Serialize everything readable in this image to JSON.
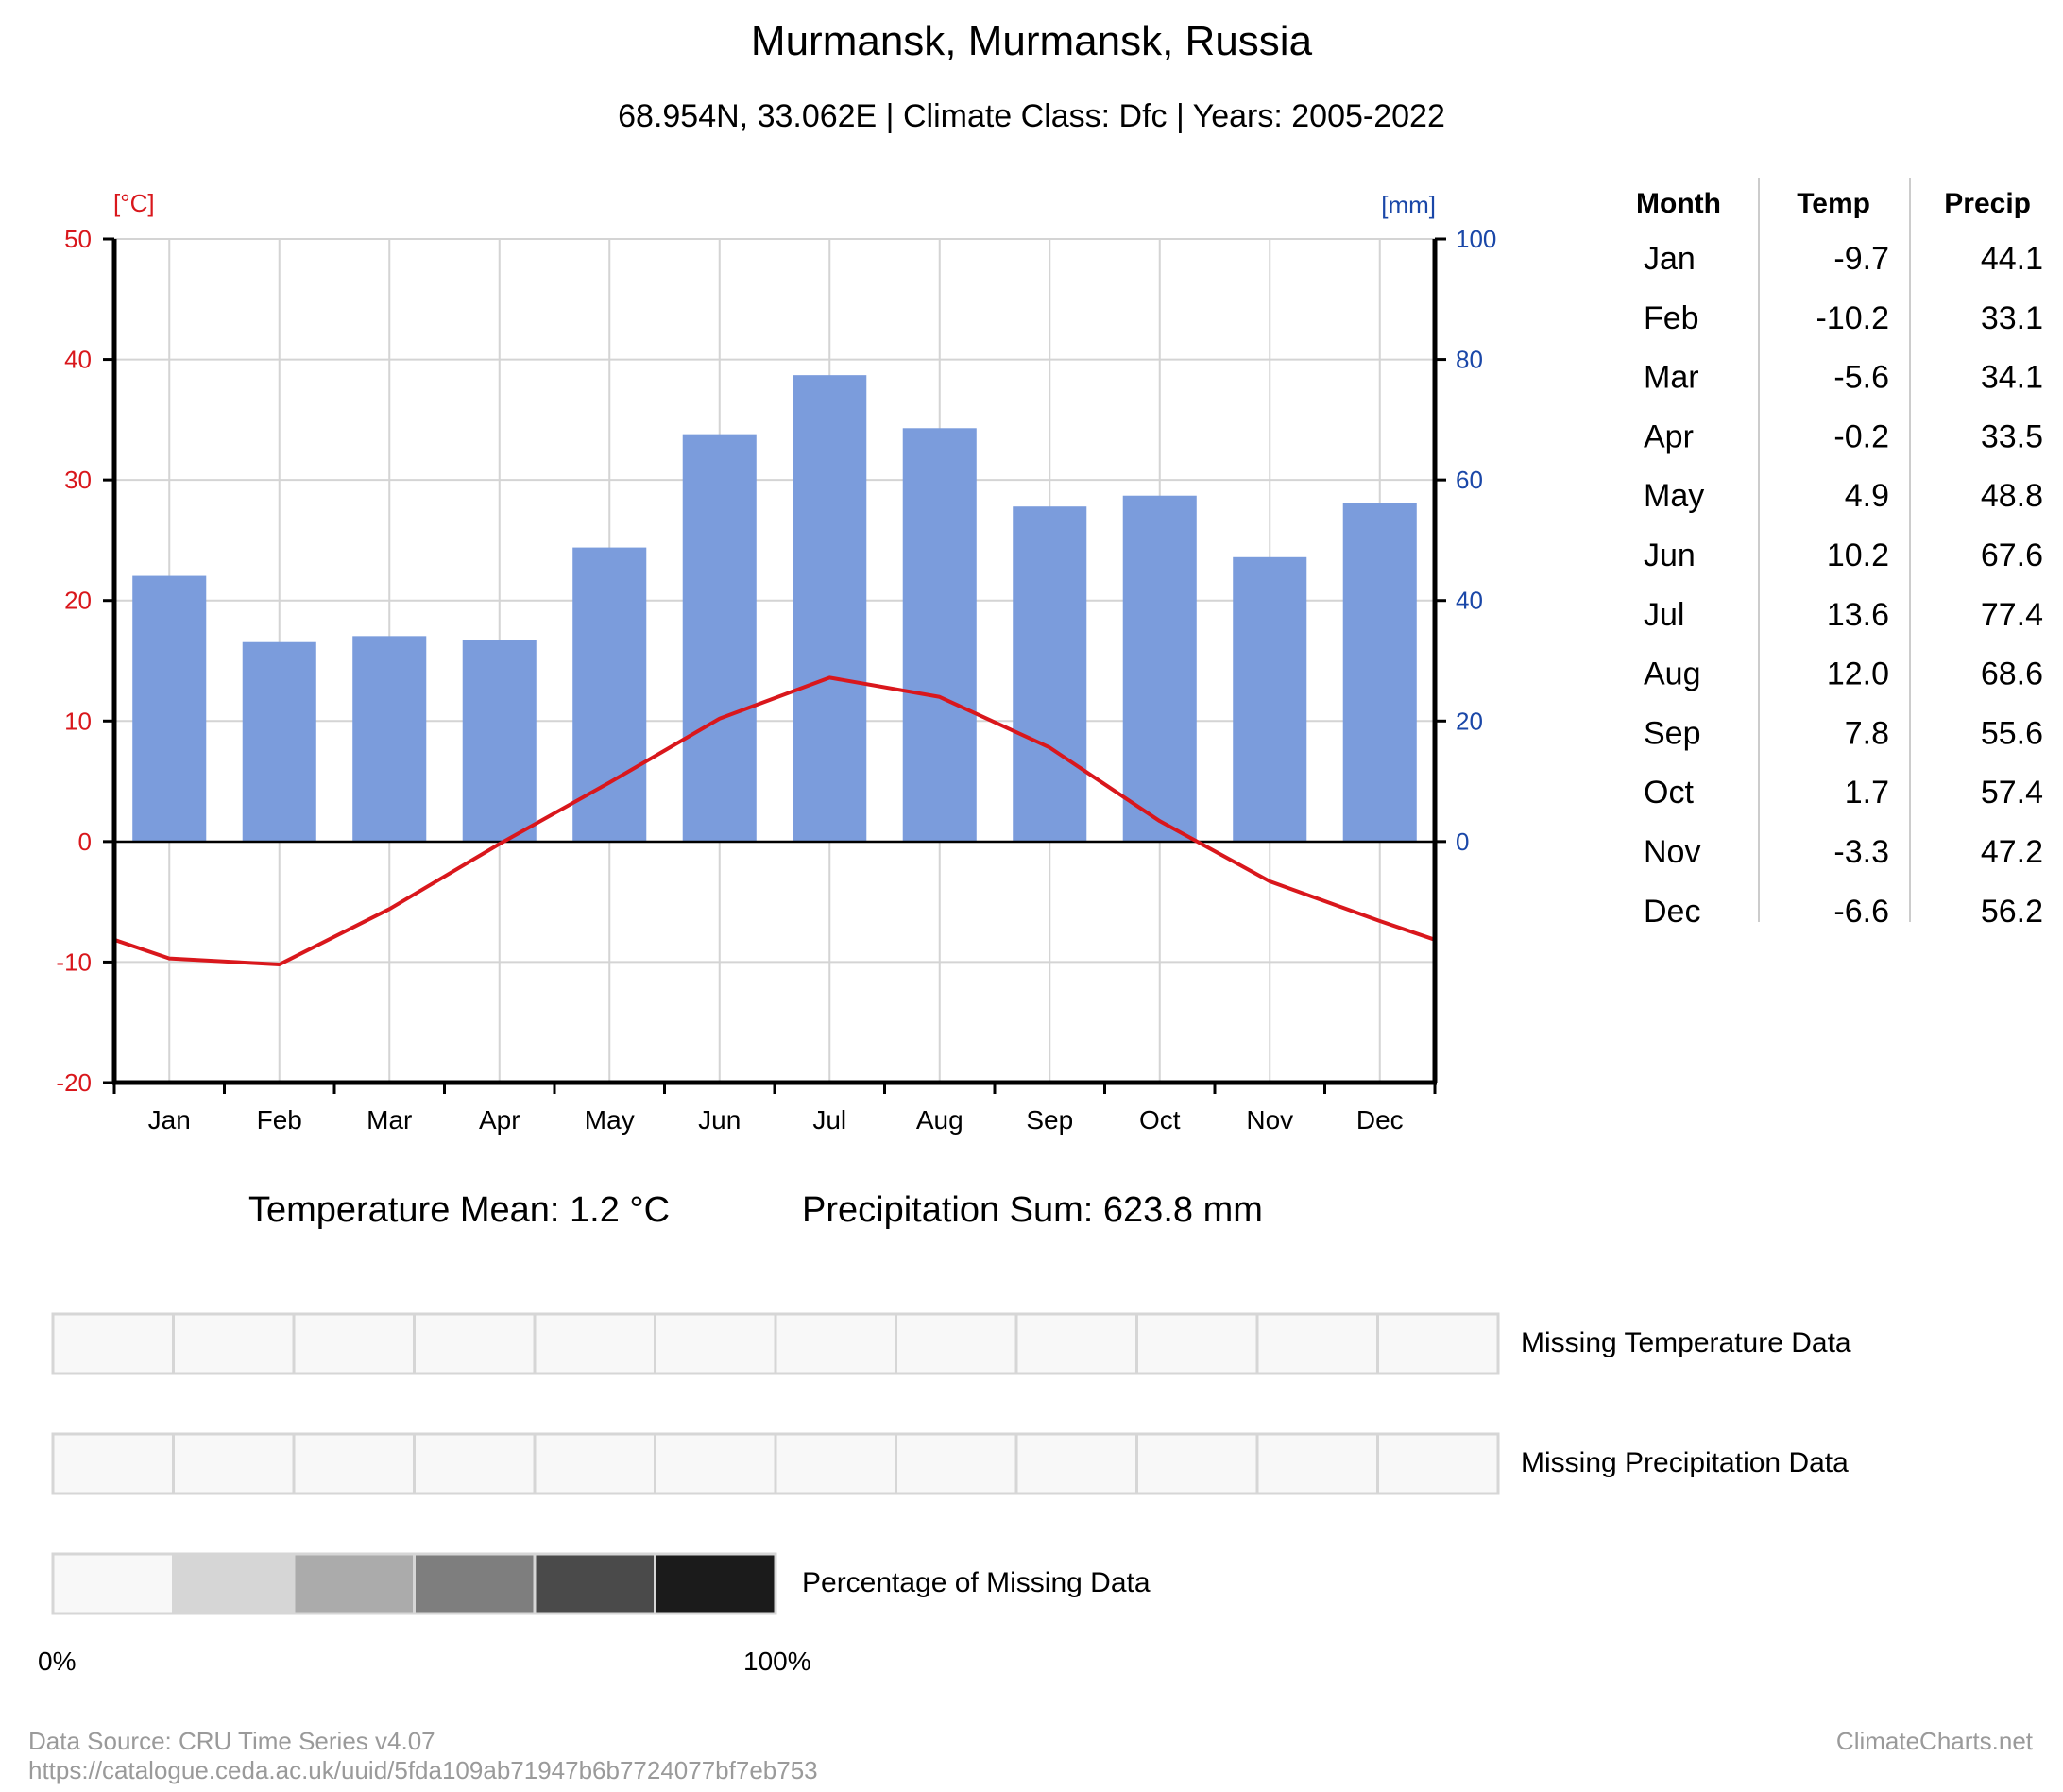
{
  "header": {
    "title": "Murmansk, Murmansk, Russia",
    "subtitle": "68.954N, 33.062E | Climate Class: Dfc | Years: 2005-2022"
  },
  "axes": {
    "temp_unit": "[°C]",
    "precip_unit": "[mm]"
  },
  "colors": {
    "temp": "#d9171c",
    "precip_axis": "#1a47a8",
    "bar": "#7b9cdc",
    "grid": "#d4d4d4",
    "footer": "#9a9a9a"
  },
  "chart_data": {
    "type": "bar",
    "title": "Murmansk, Murmansk, Russia",
    "categories": [
      "Jan",
      "Feb",
      "Mar",
      "Apr",
      "May",
      "Jun",
      "Jul",
      "Aug",
      "Sep",
      "Oct",
      "Nov",
      "Dec"
    ],
    "series": [
      {
        "name": "Precip",
        "type": "bar",
        "unit": "mm",
        "axis": "right",
        "values": [
          44.1,
          33.1,
          34.1,
          33.5,
          48.8,
          67.6,
          77.4,
          68.6,
          55.6,
          57.4,
          47.2,
          56.2
        ]
      },
      {
        "name": "Temp",
        "type": "line",
        "unit": "°C",
        "axis": "left",
        "values": [
          -9.7,
          -10.2,
          -5.6,
          -0.2,
          4.9,
          10.2,
          13.6,
          12.0,
          7.8,
          1.7,
          -3.3,
          -6.6
        ]
      }
    ],
    "ylim_left": [
      -20,
      50
    ],
    "yticks_left": [
      "50",
      "40",
      "30",
      "20",
      "10",
      "0",
      "-10",
      "-20"
    ],
    "ylim_right": [
      0,
      100
    ],
    "yticks_right": [
      "100",
      "80",
      "60",
      "40",
      "20",
      "0"
    ],
    "grid": true
  },
  "table": {
    "headers": [
      "Month",
      "Temp",
      "Precip"
    ],
    "rows": [
      [
        "Jan",
        "-9.7",
        "44.1"
      ],
      [
        "Feb",
        "-10.2",
        "33.1"
      ],
      [
        "Mar",
        "-5.6",
        "34.1"
      ],
      [
        "Apr",
        "-0.2",
        "33.5"
      ],
      [
        "May",
        "4.9",
        "48.8"
      ],
      [
        "Jun",
        "10.2",
        "67.6"
      ],
      [
        "Jul",
        "13.6",
        "77.4"
      ],
      [
        "Aug",
        "12.0",
        "68.6"
      ],
      [
        "Sep",
        "7.8",
        "55.6"
      ],
      [
        "Oct",
        "1.7",
        "57.4"
      ],
      [
        "Nov",
        "-3.3",
        "47.2"
      ],
      [
        "Dec",
        "-6.6",
        "56.2"
      ]
    ]
  },
  "summary": {
    "temp_mean": "Temperature Mean: 1.2 °C",
    "precip_sum": "Precipitation Sum: 623.8 mm"
  },
  "missing": {
    "temp_label": "Missing Temperature Data",
    "precip_label": "Missing Precipitation Data",
    "legend_label": "Percentage of Missing Data",
    "legend_min": "0%",
    "legend_max": "100%",
    "temp_missing_percent": [
      0,
      0,
      0,
      0,
      0,
      0,
      0,
      0,
      0,
      0,
      0,
      0
    ],
    "precip_missing_percent": [
      0,
      0,
      0,
      0,
      0,
      0,
      0,
      0,
      0,
      0,
      0,
      0
    ],
    "legend_colors": [
      "#f8f8f8",
      "#d6d6d6",
      "#ababab",
      "#7e7e7e",
      "#4a4a4a",
      "#1b1b1b"
    ]
  },
  "footer": {
    "source_line1": "Data Source: CRU Time Series v4.07",
    "source_line2": "https://catalogue.ceda.ac.uk/uuid/5fda109ab71947b6b7724077bf7eb753",
    "brand": "ClimateCharts.net"
  }
}
